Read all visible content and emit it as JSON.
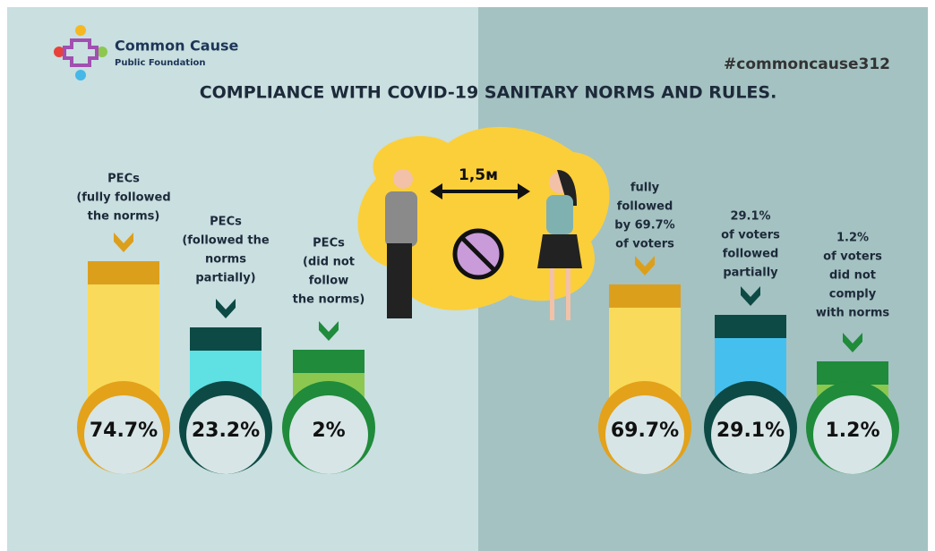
{
  "header": {
    "logo_name": "Common Cause",
    "logo_sub": "Public Foundation",
    "hashtag": "#commoncause312",
    "title": "COMPLIANCE WITH COVID-19 SANITARY NORMS AND RULES."
  },
  "center": {
    "distance": "1,5м"
  },
  "groups": [
    {
      "label": [
        "PECs",
        "(fully followed",
        "the norms)"
      ],
      "value": "74.7%"
    },
    {
      "label": [
        "PECs",
        "(followed the",
        "norms",
        "partially)"
      ],
      "value": "23.2%"
    },
    {
      "label": [
        "PECs",
        "(did not",
        "follow",
        "the norms)"
      ],
      "value": "2%"
    },
    {
      "label": [
        "fully",
        "followed",
        "by 69.7%",
        "of voters"
      ],
      "value": "69.7%"
    },
    {
      "label": [
        "29.1%",
        "of voters",
        "followed",
        "partially"
      ],
      "value": "29.1%"
    },
    {
      "label": [
        "1.2%",
        "of voters",
        "did not",
        "comply",
        "with norms"
      ],
      "value": "1.2%"
    }
  ]
}
